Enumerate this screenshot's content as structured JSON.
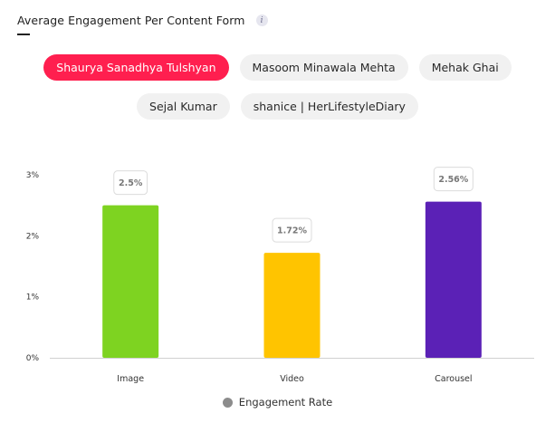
{
  "header": {
    "title": "Average Engagement Per Content Form",
    "info_glyph": "i"
  },
  "chips": {
    "row1": [
      "Shaurya Sanadhya Tulshyan",
      "Masoom Minawala Mehta",
      "Mehak Ghai"
    ],
    "row2": [
      "Sejal Kumar",
      "shanice | HerLifestyleDiary"
    ],
    "active": "Shaurya Sanadhya Tulshyan"
  },
  "chart_data": {
    "type": "bar",
    "categories": [
      "Image",
      "Video",
      "Carousel"
    ],
    "values": [
      2.5,
      1.72,
      2.56
    ],
    "value_labels": [
      "2.5%",
      "1.72%",
      "2.56%"
    ],
    "colors": [
      "#7ed321",
      "#ffc400",
      "#5b21b6"
    ],
    "ylim": [
      0,
      3
    ],
    "yticks": [
      0,
      1,
      2,
      3
    ],
    "ytick_labels": [
      "0%",
      "1%",
      "2%",
      "3%"
    ],
    "grid": false,
    "legend": {
      "label": "Engagement Rate",
      "color": "#8c8c8c",
      "position": "bottom"
    }
  }
}
